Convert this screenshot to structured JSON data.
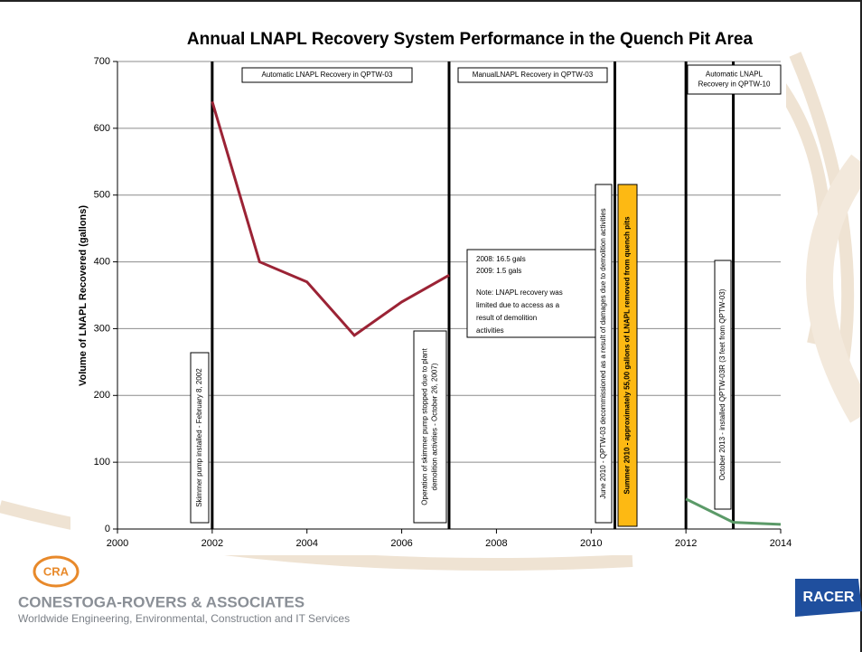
{
  "chart_data": {
    "type": "line",
    "title": "Annual LNAPL Recovery System Performance in the Quench Pit Area",
    "y_label": "Volume of LNAPL Recovered (gallons)",
    "xlim": [
      2000,
      2014
    ],
    "xticks": [
      2000,
      2002,
      2004,
      2006,
      2008,
      2010,
      2012,
      2014
    ],
    "ylim": [
      0,
      700
    ],
    "yticks": [
      0,
      100,
      200,
      300,
      400,
      500,
      600,
      700
    ],
    "grid": true,
    "series": [
      {
        "color": "#9b2335",
        "x": [
          2002,
          2003,
          2004,
          2005,
          2006,
          2007
        ],
        "values": [
          640,
          400,
          370,
          290,
          340,
          380
        ]
      },
      {
        "color": "#5b9a68",
        "x": [
          2012,
          2013,
          2014
        ],
        "values": [
          45,
          10,
          7
        ]
      }
    ],
    "event_lines": [
      2002,
      2007,
      2010.5,
      2012,
      2013
    ],
    "annotations": [
      {
        "lines": [
          "Automatic LNAPL Recovery in QPTW-03"
        ]
      },
      {
        "lines": [
          "ManualLNAPL Recovery in QPTW-03"
        ]
      },
      {
        "lines": [
          "Automatic LNAPL",
          "Recovery in QPTW-10"
        ]
      },
      {
        "lines": [
          "Skimmer pump installed - February 8, 2002"
        ]
      },
      {
        "lines": [
          "Operation of skimmer pump stopped due to plant",
          "demolition activities - October 26, 2007)"
        ]
      },
      {
        "lines": [
          "2008: 16.5 gals",
          "2009: 1.5 gals",
          "Note: LNAPL recovery was",
          "limited due to access as a",
          "result of demolition",
          "activities"
        ]
      },
      {
        "lines": [
          "June 2010 - QPTW-03 decommissioned as a result of damages due to demolition activities"
        ]
      },
      {
        "lines": [
          "Summer 2010 - approximately 55,00 gallons of LNAPL removed from quench pits"
        ]
      },
      {
        "lines": [
          "October 2013 - installed QPTW-03R (3 feet from QPTW-03)"
        ]
      }
    ]
  },
  "footer": {
    "left_logo": "CRA",
    "company": "CONESTOGA-ROVERS & ASSOCIATES",
    "tagline": "Worldwide Engineering, Environmental, Construction and IT Services",
    "right_logo": "RACER"
  }
}
